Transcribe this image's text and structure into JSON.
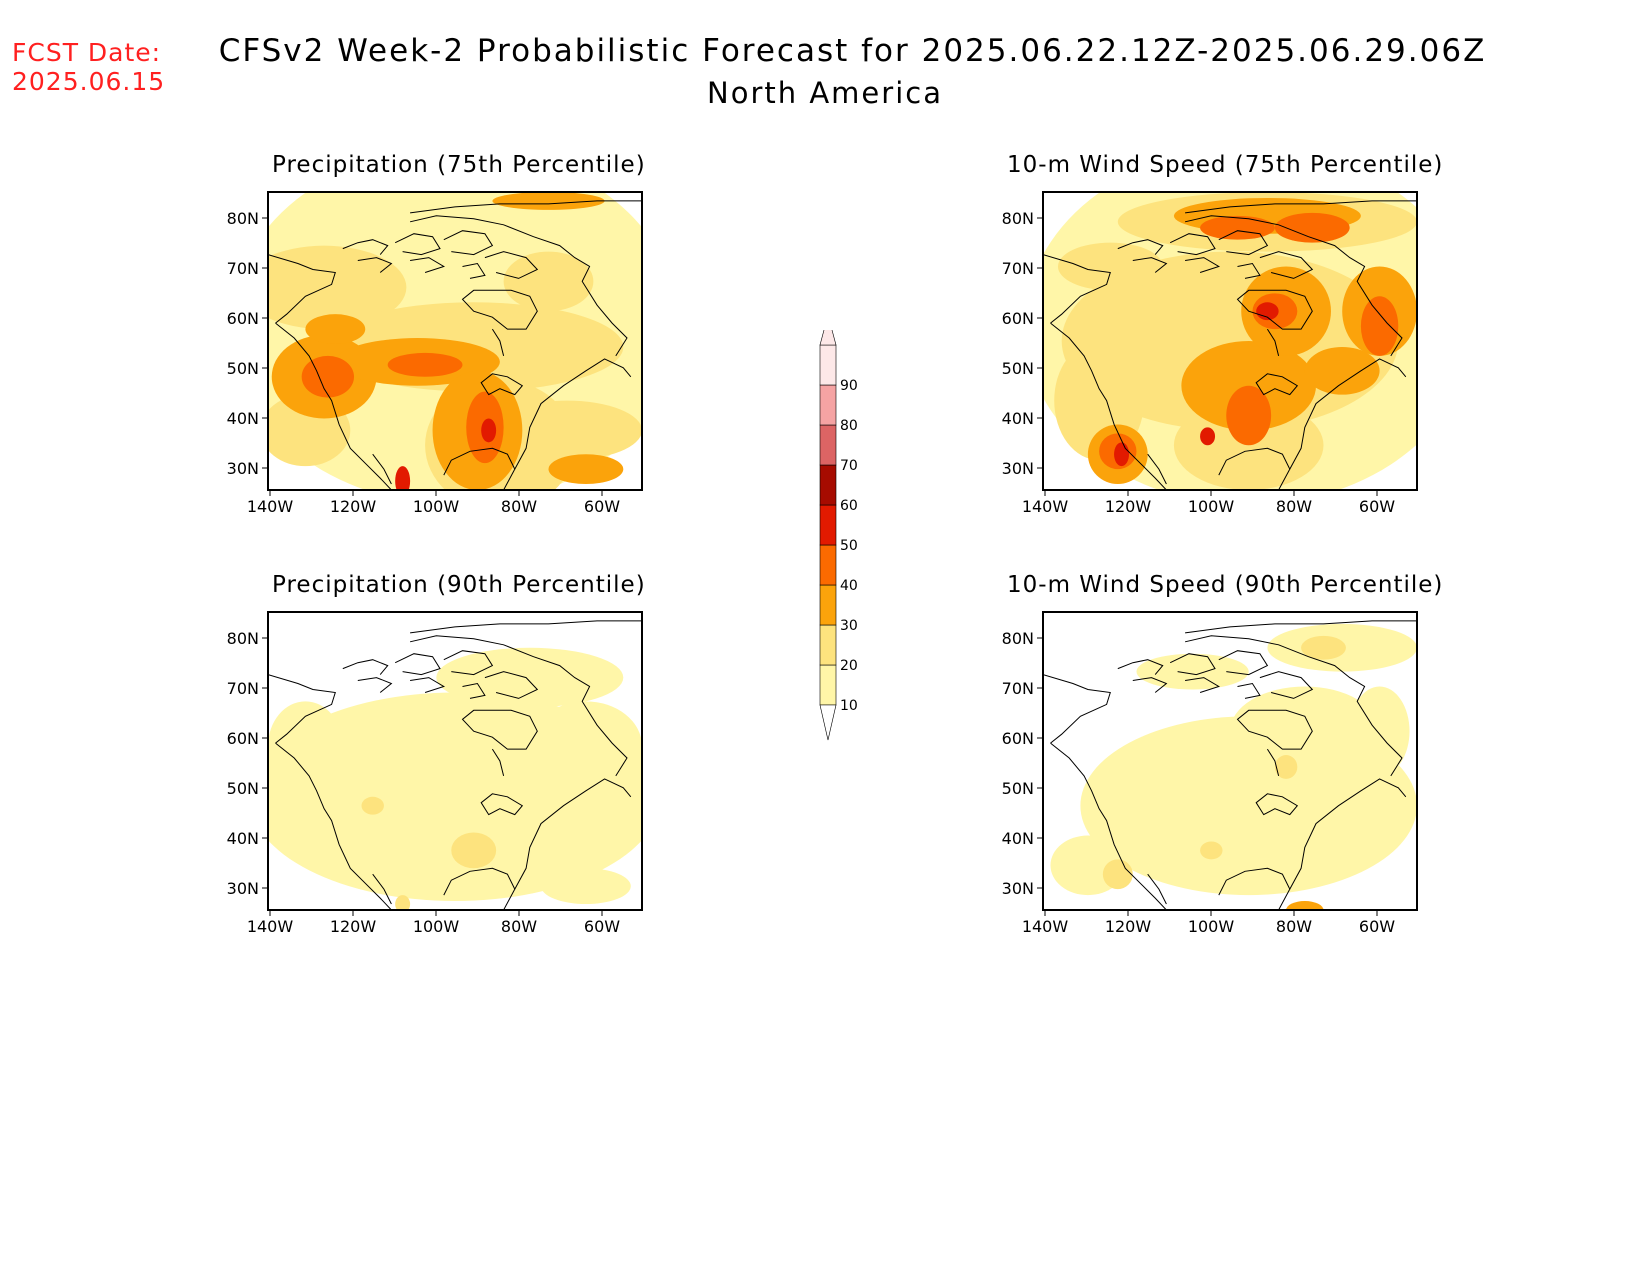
{
  "header": {
    "fcst_label": "FCST Date:",
    "fcst_date": "2025.06.15",
    "title": "CFSv2 Week-2 Probabilistic Forecast for 2025.06.22.12Z-2025.06.29.06Z",
    "subtitle": "North America"
  },
  "colors": {
    "c10": "#fff6a8",
    "c20": "#fde37e",
    "c30": "#fba30b",
    "c40": "#fb6a00",
    "c50": "#e21a00",
    "c60": "#a60b00",
    "c70": "#dc6464",
    "c80": "#f5a3a3",
    "c90": "#fde8e8",
    "coast": "#000000"
  },
  "axes": {
    "lon_labels": [
      "140W",
      "120W",
      "100W",
      "80W",
      "60W"
    ],
    "lat_labels": [
      "80N",
      "70N",
      "60N",
      "50N",
      "40N",
      "30N"
    ]
  },
  "colorbar": {
    "levels": [
      "10",
      "20",
      "30",
      "40",
      "50",
      "60",
      "70",
      "80",
      "90"
    ]
  },
  "panels": [
    {
      "id": "precip75",
      "title": "Precipitation (75th Percentile)"
    },
    {
      "id": "wind75",
      "title": "10-m Wind Speed (75th Percentile)"
    },
    {
      "id": "precip90",
      "title": "Precipitation (90th Percentile)"
    },
    {
      "id": "wind90",
      "title": "10-m Wind Speed (90th Percentile)"
    }
  ]
}
